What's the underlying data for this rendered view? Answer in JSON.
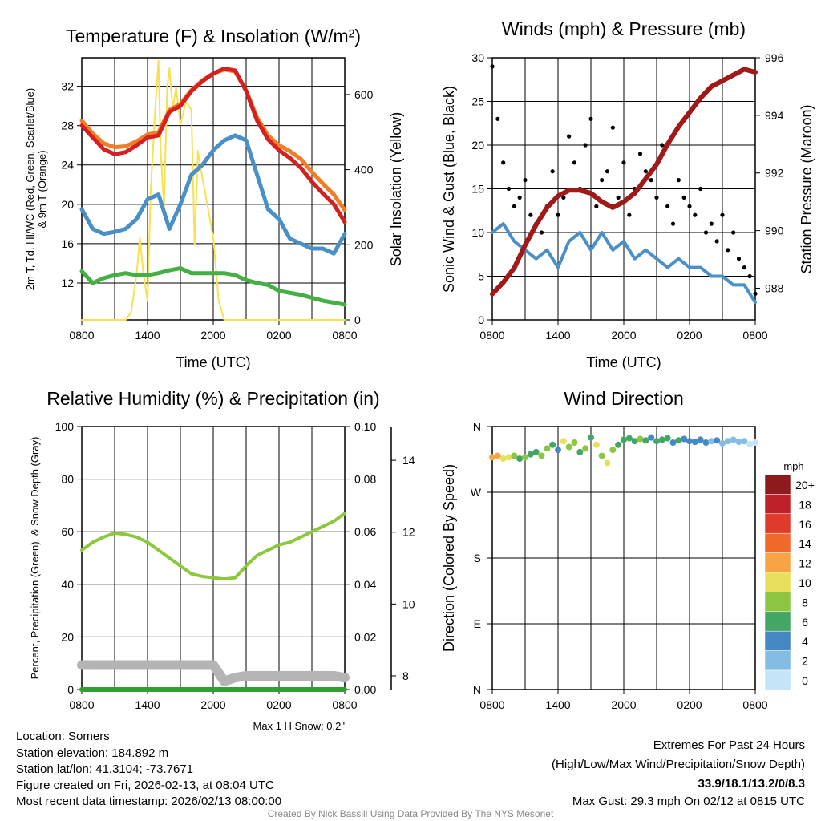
{
  "colors": {
    "red": "#d42020",
    "orange": "#f07d28",
    "blue": "#4a90c8",
    "green": "#44b044",
    "yellow": "#f8e050",
    "black": "#000000",
    "maroon": "#a01818",
    "rh": "#8cc83c",
    "snow": "#b4b4b4",
    "precip": "#30a030",
    "extremes": "#d42020",
    "credit": "#888888"
  },
  "chart_data": [
    {
      "type": "line",
      "title": "Temperature (F) & Insolation (W/m²)",
      "xlabel": "Time (UTC)",
      "ylabel": "2m T, Td, HI/WC (Red, Green, Scarlet/Blue)",
      "ylabel2": "& 9m T (Orange)",
      "y2label": "Solar Insolation (Yellow)",
      "xticks": [
        "0800",
        "1400",
        "2000",
        "0200",
        "0800"
      ],
      "yticks": [
        "12",
        "16",
        "20",
        "24",
        "28",
        "32"
      ],
      "y2ticks": [
        "0",
        "200",
        "400",
        "600"
      ],
      "ylim": [
        8.25,
        34.9
      ],
      "y2lim": [
        0,
        698
      ],
      "grid": true,
      "x_hours_step": 1,
      "series": [
        {
          "name": "9m T (Orange)",
          "color": "orange",
          "values": [
            28.5,
            27.2,
            26.2,
            25.8,
            25.9,
            26.4,
            27.1,
            27.3,
            29.6,
            30.2,
            31.6,
            32.6,
            33.3,
            33.7,
            33.5,
            31.6,
            28.8,
            27,
            26,
            25.4,
            24.6,
            23.3,
            22.1,
            21,
            19.4
          ]
        },
        {
          "name": "2m T (Red)",
          "color": "red",
          "values": [
            28,
            26.8,
            25.6,
            25.1,
            25.3,
            26,
            26.8,
            27,
            29.4,
            30,
            31.5,
            32.5,
            33.3,
            33.8,
            33.6,
            31.5,
            28.5,
            26.6,
            25.5,
            24.7,
            23.7,
            22.3,
            21.1,
            20,
            18.2
          ]
        },
        {
          "name": "HI/WC (Blue)",
          "color": "blue",
          "values": [
            19.5,
            17.5,
            17,
            17.2,
            17.5,
            18.5,
            20.5,
            21,
            17.5,
            20,
            23,
            24,
            25.5,
            26.5,
            27,
            26.5,
            23,
            19.5,
            18.5,
            16.5,
            16,
            15.5,
            15.5,
            15,
            17
          ]
        },
        {
          "name": "Td (Green)",
          "color": "green",
          "values": [
            13.2,
            12,
            12.5,
            12.8,
            13,
            12.8,
            12.8,
            13,
            13.3,
            13.5,
            13,
            13,
            13,
            13,
            12.8,
            12.3,
            12,
            11.8,
            11.2,
            11,
            10.8,
            10.5,
            10.2,
            10,
            9.8
          ]
        }
      ],
      "solar": {
        "hours": [
          0,
          4,
          4.5,
          5,
          5.3,
          5.6,
          6,
          6.3,
          6.7,
          7,
          7.2,
          7.5,
          7.8,
          8,
          8.3,
          8.6,
          9,
          9.5,
          10,
          10.3,
          10.6,
          11,
          11.5,
          12,
          12.5,
          13,
          14,
          24
        ],
        "values": [
          0,
          0,
          20,
          120,
          220,
          130,
          50,
          350,
          560,
          690,
          450,
          300,
          620,
          670,
          560,
          620,
          520,
          580,
          560,
          200,
          450,
          380,
          300,
          220,
          50,
          0,
          0,
          0
        ]
      }
    },
    {
      "type": "line",
      "title": "Winds (mph) & Pressure (mb)",
      "xlabel": "Time (UTC)",
      "ylabel": "Sonic Wind & Gust (Blue, Black)",
      "y2label": "Station Pressure (Maroon)",
      "xticks": [
        "0800",
        "1400",
        "2000",
        "0200",
        "0800"
      ],
      "yticks": [
        "0",
        "5",
        "10",
        "15",
        "20",
        "25",
        "30"
      ],
      "y2ticks": [
        "988",
        "990",
        "992",
        "994",
        "996"
      ],
      "ylim": [
        0,
        30
      ],
      "y2lim": [
        986.9,
        996
      ],
      "grid": true,
      "pressure": [
        987.8,
        988.2,
        988.7,
        989.5,
        990.2,
        990.8,
        991.2,
        991.4,
        991.4,
        991.3,
        991,
        990.8,
        991,
        991.3,
        991.8,
        992.3,
        993,
        993.6,
        994.1,
        994.6,
        995,
        995.2,
        995.4,
        995.6,
        995.5
      ],
      "wind": [
        10,
        11,
        9,
        8,
        7,
        8,
        6,
        9,
        10,
        8,
        10,
        8,
        9,
        7,
        8,
        7,
        6,
        7,
        6,
        6,
        5,
        5,
        4,
        4,
        2
      ],
      "gust_half_hourly": [
        29,
        23,
        18,
        15,
        13,
        14,
        16,
        12,
        11,
        10,
        13,
        17,
        12,
        14,
        21,
        18,
        15,
        20,
        23,
        13,
        16,
        17,
        22,
        14,
        18,
        12,
        15,
        19,
        17,
        16,
        14,
        20,
        13,
        11,
        16,
        14,
        13,
        12,
        15,
        10,
        11,
        9,
        12,
        8,
        10,
        7,
        6,
        5,
        3
      ]
    },
    {
      "type": "line",
      "title": "Relative Humidity (%) & Precipitation (in)",
      "ylabel": "Percent, Precipitation (Green), & Snow Depth (Gray)",
      "xticks": [
        "0800",
        "1400",
        "2000",
        "0200",
        "0800"
      ],
      "yticks": [
        "0",
        "20",
        "40",
        "60",
        "80",
        "100"
      ],
      "y2ticks": [
        "0.00",
        "0.02",
        "0.04",
        "0.06",
        "0.08",
        "0.10"
      ],
      "y3ticks": [
        "8",
        "10",
        "12",
        "14"
      ],
      "ylim": [
        0,
        100
      ],
      "y2lim": [
        0,
        0.1
      ],
      "y3lim": [
        7.62,
        14.94
      ],
      "grid": true,
      "rh": [
        53,
        56,
        58,
        59.5,
        59,
        58,
        56,
        53,
        50,
        47,
        44,
        43,
        42.5,
        42,
        42.5,
        47,
        51,
        53,
        55,
        56,
        58,
        60,
        62,
        64,
        67
      ],
      "precip": [
        0,
        0,
        0,
        0,
        0,
        0,
        0,
        0,
        0,
        0,
        0,
        0,
        0,
        0,
        0,
        0,
        0,
        0,
        0,
        0,
        0,
        0,
        0,
        0,
        0
      ],
      "snow_depth": [
        8.3,
        8.3,
        8.3,
        8.3,
        8.3,
        8.3,
        8.3,
        8.3,
        8.3,
        8.3,
        8.3,
        8.3,
        8.3,
        7.85,
        7.95,
        8.0,
        8.0,
        8.0,
        8.0,
        8.0,
        8.0,
        8.0,
        8.0,
        8.0,
        7.95
      ],
      "note": "Max 1 H Snow: 0.2\""
    },
    {
      "type": "scatter",
      "title": "Wind Direction",
      "ylabel": "Direction (Colored By Speed)",
      "xticks": [
        "0800",
        "1400",
        "2000",
        "0200",
        "0800"
      ],
      "yticks": [
        "N",
        "E",
        "S",
        "W",
        "N"
      ],
      "ylim": [
        0,
        360
      ],
      "grid": true,
      "direction_half_hourly": [
        318,
        320,
        316,
        318,
        320,
        316,
        318,
        322,
        325,
        320,
        330,
        335,
        328,
        340,
        332,
        338,
        325,
        330,
        345,
        335,
        320,
        310,
        328,
        335,
        342,
        344,
        340,
        343,
        341,
        345,
        340,
        342,
        344,
        338,
        341,
        343,
        340,
        339,
        342,
        338,
        340,
        341,
        337,
        340,
        342,
        339,
        340,
        336,
        338
      ],
      "speed_half_hourly": [
        12,
        12,
        11,
        10,
        8,
        7,
        8,
        6,
        7,
        9,
        8,
        6,
        5,
        10,
        9,
        8,
        7,
        9,
        6,
        10,
        8,
        11,
        8,
        7,
        6,
        7,
        6,
        8,
        7,
        5,
        6,
        7,
        6,
        5,
        6,
        5,
        4,
        5,
        4,
        4,
        3,
        4,
        2,
        3,
        2,
        3,
        2,
        1,
        1
      ],
      "colorbar": {
        "title": "mph",
        "labels": [
          "20+",
          "18",
          "16",
          "14",
          "12",
          "10",
          "8",
          "6",
          "4",
          "2",
          "0"
        ],
        "colors": [
          "#8e1a1c",
          "#c0202a",
          "#e03a2c",
          "#f0692c",
          "#f8a444",
          "#e8e05c",
          "#8cc640",
          "#44a664",
          "#4488c4",
          "#84bce4",
          "#c4e4f8"
        ]
      }
    }
  ],
  "footer": {
    "location": "Location: Somers",
    "elevation": "Station elevation: 184.892 m",
    "latlon": "Station lat/lon: 41.3104; -73.7671",
    "created": "Figure created on Fri, 2026-02-13, at 08:04 UTC",
    "recent": "Most recent data timestamp: 2026/02/13 08:00:00",
    "extremes_title": "Extremes For Past 24 Hours",
    "extremes_legend": "(High/Low/Max Wind/Precipitation/Snow Depth)",
    "extremes_values": "33.9/18.1/13.2/0/8.3",
    "max_gust": "Max Gust: 29.3 mph On 02/12 at 0815 UTC",
    "credit": "Created By Nick Bassill Using Data Provided By The NYS Mesonet"
  }
}
